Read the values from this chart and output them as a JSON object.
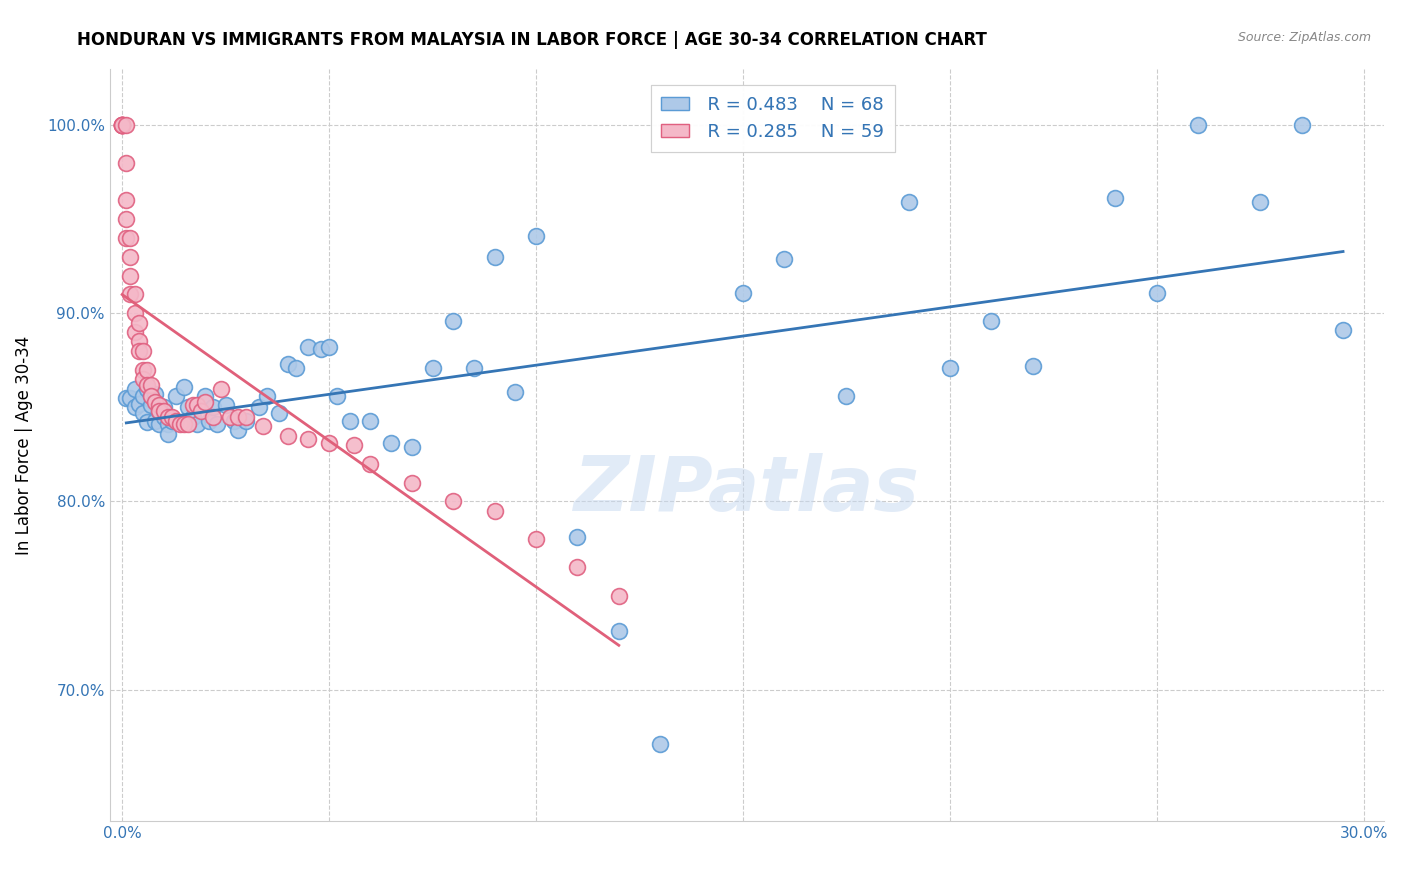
{
  "title": "HONDURAN VS IMMIGRANTS FROM MALAYSIA IN LABOR FORCE | AGE 30-34 CORRELATION CHART",
  "source": "Source: ZipAtlas.com",
  "ylabel": "In Labor Force | Age 30-34",
  "xlim_min": -0.003,
  "xlim_max": 0.305,
  "ylim_min": 0.63,
  "ylim_max": 1.03,
  "yticks": [
    0.7,
    0.8,
    0.9,
    1.0
  ],
  "ytick_labels": [
    "70.0%",
    "80.0%",
    "90.0%",
    "100.0%"
  ],
  "xticks": [
    0.0,
    0.05,
    0.1,
    0.15,
    0.2,
    0.25,
    0.3
  ],
  "xtick_labels": [
    "0.0%",
    "",
    "",
    "",
    "",
    "",
    "30.0%"
  ],
  "blue_R": 0.483,
  "blue_N": 68,
  "pink_R": 0.285,
  "pink_N": 59,
  "blue_scatter_color": "#aec9e8",
  "blue_edge_color": "#5b9bd5",
  "pink_scatter_color": "#f4b8c8",
  "pink_edge_color": "#e06080",
  "blue_line_color": "#3575b5",
  "pink_line_color": "#e0607a",
  "axis_label_color": "#3575b5",
  "watermark_color": "#c5d8f0",
  "blue_x": [
    0.001,
    0.002,
    0.003,
    0.003,
    0.004,
    0.005,
    0.005,
    0.006,
    0.006,
    0.007,
    0.007,
    0.008,
    0.008,
    0.009,
    0.009,
    0.01,
    0.01,
    0.011,
    0.011,
    0.012,
    0.013,
    0.015,
    0.016,
    0.017,
    0.018,
    0.02,
    0.021,
    0.022,
    0.023,
    0.025,
    0.027,
    0.028,
    0.03,
    0.033,
    0.035,
    0.038,
    0.04,
    0.042,
    0.045,
    0.048,
    0.05,
    0.052,
    0.055,
    0.06,
    0.065,
    0.07,
    0.075,
    0.08,
    0.085,
    0.09,
    0.095,
    0.1,
    0.11,
    0.12,
    0.13,
    0.15,
    0.16,
    0.175,
    0.19,
    0.2,
    0.21,
    0.22,
    0.24,
    0.25,
    0.26,
    0.275,
    0.285,
    0.295
  ],
  "blue_y": [
    0.855,
    0.855,
    0.85,
    0.86,
    0.852,
    0.856,
    0.847,
    0.86,
    0.842,
    0.856,
    0.851,
    0.843,
    0.857,
    0.848,
    0.841,
    0.85,
    0.845,
    0.841,
    0.836,
    0.843,
    0.856,
    0.861,
    0.85,
    0.845,
    0.841,
    0.856,
    0.843,
    0.85,
    0.841,
    0.851,
    0.843,
    0.838,
    0.843,
    0.85,
    0.856,
    0.847,
    0.873,
    0.871,
    0.882,
    0.881,
    0.882,
    0.856,
    0.843,
    0.843,
    0.831,
    0.829,
    0.871,
    0.896,
    0.871,
    0.93,
    0.858,
    0.941,
    0.781,
    0.731,
    0.671,
    0.911,
    0.929,
    0.856,
    0.959,
    0.871,
    0.896,
    0.872,
    0.961,
    0.911,
    1.0,
    0.959,
    1.0,
    0.891
  ],
  "pink_x": [
    0.0,
    0.0,
    0.0,
    0.0,
    0.0,
    0.0,
    0.001,
    0.001,
    0.001,
    0.001,
    0.001,
    0.002,
    0.002,
    0.002,
    0.002,
    0.003,
    0.003,
    0.003,
    0.004,
    0.004,
    0.004,
    0.005,
    0.005,
    0.005,
    0.006,
    0.006,
    0.007,
    0.007,
    0.008,
    0.009,
    0.009,
    0.01,
    0.011,
    0.012,
    0.013,
    0.014,
    0.015,
    0.016,
    0.017,
    0.018,
    0.019,
    0.02,
    0.022,
    0.024,
    0.026,
    0.028,
    0.03,
    0.034,
    0.04,
    0.045,
    0.05,
    0.056,
    0.06,
    0.07,
    0.08,
    0.09,
    0.1,
    0.11,
    0.12
  ],
  "pink_y": [
    1.0,
    1.0,
    1.0,
    1.0,
    1.0,
    1.0,
    1.0,
    0.98,
    0.96,
    0.95,
    0.94,
    0.94,
    0.93,
    0.92,
    0.91,
    0.91,
    0.9,
    0.89,
    0.895,
    0.885,
    0.88,
    0.88,
    0.87,
    0.865,
    0.87,
    0.862,
    0.862,
    0.856,
    0.853,
    0.851,
    0.848,
    0.848,
    0.845,
    0.845,
    0.843,
    0.841,
    0.841,
    0.841,
    0.851,
    0.851,
    0.848,
    0.853,
    0.845,
    0.86,
    0.845,
    0.845,
    0.845,
    0.84,
    0.835,
    0.833,
    0.831,
    0.83,
    0.82,
    0.81,
    0.8,
    0.795,
    0.78,
    0.765,
    0.75
  ]
}
